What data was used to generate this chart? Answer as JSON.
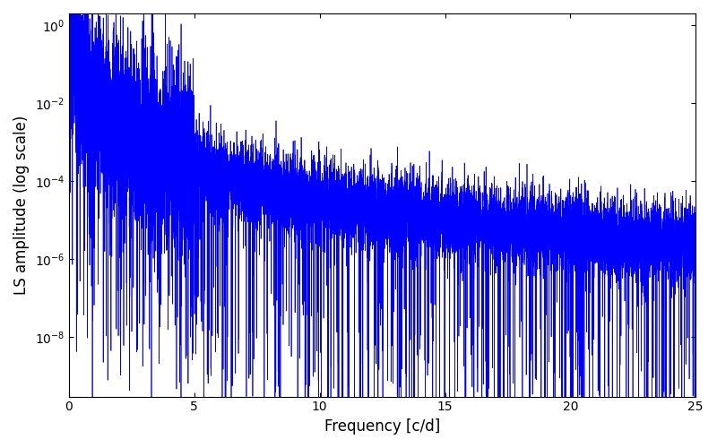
{
  "xlabel": "Frequency [c/d]",
  "ylabel": "LS amplitude (log scale)",
  "xlim": [
    0,
    25
  ],
  "ylim": [
    3e-10,
    2.0
  ],
  "yticks": [
    1e-08,
    1e-06,
    0.0001,
    0.01,
    1.0
  ],
  "xticks": [
    0,
    5,
    10,
    15,
    20,
    25
  ],
  "line_color": "#0000ff",
  "line_width": 0.5,
  "background_color": "#ffffff",
  "n_points": 12000,
  "freq_max": 25.0,
  "seed": 7,
  "figsize": [
    8.0,
    5.0
  ],
  "dpi": 100
}
